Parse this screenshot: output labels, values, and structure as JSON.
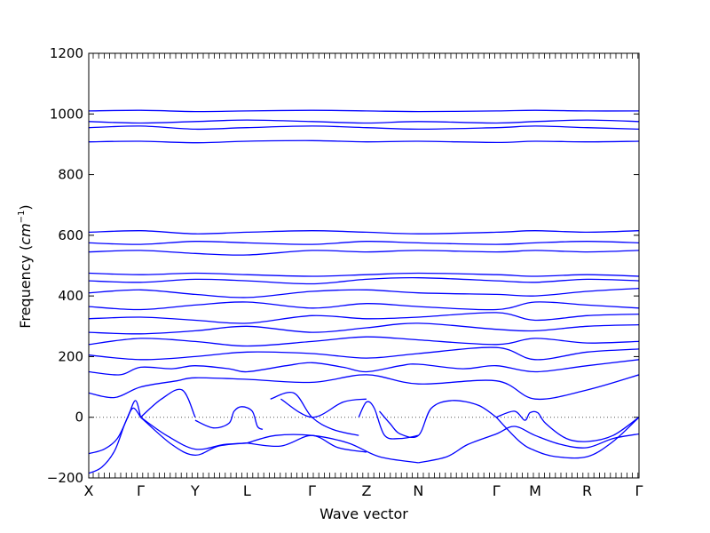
{
  "chart_data": {
    "type": "line",
    "title": "",
    "xlabel": "Wave vector",
    "ylabel": "Frequency ",
    "ylabel_unit_base": "cm",
    "ylabel_unit_exp": "−1",
    "ylim": [
      -200,
      1200
    ],
    "yticks": [
      -200,
      0,
      200,
      400,
      600,
      800,
      1000,
      1200
    ],
    "xlim": [
      0,
      10.6
    ],
    "path_points": [
      {
        "label": "X",
        "x": 0
      },
      {
        "label": "Γ",
        "x": 1.0
      },
      {
        "label": "Y",
        "x": 2.05
      },
      {
        "label": "L",
        "x": 3.05
      },
      {
        "label": "Γ",
        "x": 4.3
      },
      {
        "label": "Z",
        "x": 5.35
      },
      {
        "label": "N",
        "x": 6.35
      },
      {
        "label": "Γ",
        "x": 7.85
      },
      {
        "label": "M",
        "x": 8.6
      },
      {
        "label": "R",
        "x": 9.6
      },
      {
        "label": "Γ",
        "x": 10.6
      }
    ],
    "zero_line": {
      "y": 0,
      "style": "dotted"
    },
    "grid": false,
    "line_color": "#0000ff",
    "series": [
      {
        "x": [
          0,
          0.25,
          0.5,
          0.7,
          0.85,
          1.0
        ],
        "y": [
          -185,
          -165,
          -110,
          -20,
          30,
          0
        ]
      },
      {
        "x": [
          0,
          0.3,
          0.55,
          0.75,
          0.9,
          1.0
        ],
        "y": [
          -120,
          -105,
          -70,
          0,
          55,
          0
        ]
      },
      {
        "x": [
          1.0,
          1.6,
          2.05,
          2.5,
          3.05
        ],
        "y": [
          0,
          -90,
          -125,
          -95,
          -85
        ]
      },
      {
        "x": [
          1.0,
          1.5,
          2.05,
          2.6,
          3.05
        ],
        "y": [
          0,
          -60,
          -105,
          -90,
          -85
        ]
      },
      {
        "x": [
          1.0,
          1.4,
          1.8,
          2.05
        ],
        "y": [
          0,
          60,
          90,
          0
        ]
      },
      {
        "x": [
          2.05,
          2.4,
          2.7,
          2.8,
          2.95,
          3.15,
          3.25,
          3.35
        ],
        "y": [
          -10,
          -35,
          -20,
          20,
          35,
          20,
          -30,
          -40
        ]
      },
      {
        "x": [
          3.05,
          3.7,
          4.3,
          4.8,
          5.35
        ],
        "y": [
          -85,
          -95,
          -60,
          -100,
          -115
        ]
      },
      {
        "x": [
          3.05,
          3.6,
          4.3,
          5.0,
          5.6,
          6.35
        ],
        "y": [
          -85,
          -60,
          -60,
          -85,
          -130,
          -150
        ]
      },
      {
        "x": [
          3.5,
          3.95,
          4.3,
          4.7,
          5.2
        ],
        "y": [
          60,
          80,
          0,
          -40,
          -60
        ]
      },
      {
        "x": [
          3.7,
          4.3,
          4.9,
          5.35
        ],
        "y": [
          60,
          0,
          50,
          60
        ]
      },
      {
        "x": [
          5.2,
          5.35,
          5.5,
          5.7,
          6.0,
          6.35
        ],
        "y": [
          0,
          50,
          30,
          -60,
          -70,
          -60
        ]
      },
      {
        "x": [
          5.6,
          5.8,
          6.0,
          6.35,
          6.6,
          7.0,
          7.5,
          7.85
        ],
        "y": [
          20,
          -20,
          -55,
          -60,
          30,
          55,
          40,
          0
        ]
      },
      {
        "x": [
          6.35,
          6.9,
          7.3,
          7.85,
          8.2,
          8.6,
          9.1,
          9.6,
          10.1,
          10.6
        ],
        "y": [
          -150,
          -130,
          -90,
          -55,
          -30,
          -60,
          -90,
          -100,
          -70,
          -55
        ]
      },
      {
        "x": [
          7.85,
          8.3,
          8.6,
          9.0,
          9.6,
          10.1,
          10.6
        ],
        "y": [
          0,
          -80,
          -110,
          -130,
          -130,
          -80,
          0
        ]
      },
      {
        "x": [
          7.85,
          8.2,
          8.4,
          8.5,
          8.65,
          8.8,
          9.2,
          9.6,
          10.1,
          10.6
        ],
        "y": [
          0,
          20,
          -10,
          15,
          15,
          -20,
          -70,
          -80,
          -60,
          0
        ]
      },
      {
        "x": [
          0,
          0.5,
          1.0,
          1.7,
          2.05,
          3.05,
          4.3,
          5.35,
          6.35,
          7.85,
          8.6,
          9.6,
          10.6
        ],
        "y": [
          80,
          65,
          100,
          120,
          130,
          125,
          115,
          140,
          110,
          120,
          60,
          90,
          140
        ]
      },
      {
        "x": [
          0,
          0.6,
          1.0,
          1.6,
          2.05,
          2.7,
          3.05,
          3.8,
          4.3,
          4.9,
          5.35,
          6.0,
          6.35,
          7.2,
          7.85,
          8.6,
          9.6,
          10.6
        ],
        "y": [
          150,
          140,
          165,
          160,
          170,
          160,
          150,
          170,
          180,
          165,
          150,
          170,
          175,
          160,
          170,
          150,
          170,
          190
        ]
      },
      {
        "x": [
          0,
          1.0,
          2.05,
          3.05,
          4.3,
          5.35,
          6.35,
          7.85,
          8.6,
          9.6,
          10.6
        ],
        "y": [
          205,
          190,
          200,
          215,
          210,
          195,
          210,
          230,
          190,
          215,
          225
        ]
      },
      {
        "x": [
          0,
          1.0,
          2.05,
          3.05,
          4.3,
          5.35,
          6.35,
          7.85,
          8.6,
          9.6,
          10.6
        ],
        "y": [
          240,
          260,
          250,
          235,
          250,
          265,
          255,
          240,
          260,
          245,
          250
        ]
      },
      {
        "x": [
          0,
          1.0,
          2.05,
          3.05,
          4.3,
          5.35,
          6.35,
          7.85,
          8.6,
          9.6,
          10.6
        ],
        "y": [
          280,
          275,
          285,
          300,
          280,
          295,
          310,
          290,
          285,
          300,
          305
        ]
      },
      {
        "x": [
          0,
          1.0,
          2.05,
          3.05,
          4.3,
          5.35,
          6.35,
          7.85,
          8.6,
          9.6,
          10.6
        ],
        "y": [
          325,
          330,
          320,
          310,
          335,
          325,
          330,
          345,
          320,
          335,
          340
        ]
      },
      {
        "x": [
          0,
          1.0,
          2.05,
          3.05,
          4.3,
          5.35,
          6.35,
          7.85,
          8.6,
          9.6,
          10.6
        ],
        "y": [
          365,
          355,
          370,
          380,
          360,
          375,
          365,
          355,
          380,
          370,
          360
        ]
      },
      {
        "x": [
          0,
          1.0,
          2.05,
          3.05,
          4.3,
          5.35,
          6.35,
          7.85,
          8.6,
          9.6,
          10.6
        ],
        "y": [
          410,
          420,
          405,
          395,
          415,
          420,
          410,
          405,
          400,
          415,
          425
        ]
      },
      {
        "x": [
          0,
          1.0,
          2.05,
          3.05,
          4.3,
          5.35,
          6.35,
          7.85,
          8.6,
          9.6,
          10.6
        ],
        "y": [
          450,
          445,
          455,
          450,
          440,
          455,
          460,
          450,
          445,
          455,
          450
        ]
      },
      {
        "x": [
          0,
          1.0,
          2.05,
          3.05,
          4.3,
          5.35,
          6.35,
          7.85,
          8.6,
          9.6,
          10.6
        ],
        "y": [
          475,
          470,
          475,
          470,
          465,
          470,
          475,
          470,
          465,
          470,
          465
        ]
      },
      {
        "x": [
          0,
          1.0,
          2.05,
          3.05,
          4.3,
          5.35,
          6.35,
          7.85,
          8.6,
          9.6,
          10.6
        ],
        "y": [
          545,
          550,
          540,
          535,
          550,
          545,
          550,
          545,
          550,
          545,
          550
        ]
      },
      {
        "x": [
          0,
          1.0,
          2.05,
          3.05,
          4.3,
          5.35,
          6.35,
          7.85,
          8.6,
          9.6,
          10.6
        ],
        "y": [
          575,
          570,
          580,
          575,
          570,
          580,
          575,
          570,
          575,
          580,
          575
        ]
      },
      {
        "x": [
          0,
          1.0,
          2.05,
          3.05,
          4.3,
          5.35,
          6.35,
          7.85,
          8.6,
          9.6,
          10.6
        ],
        "y": [
          610,
          615,
          605,
          610,
          615,
          610,
          605,
          610,
          615,
          610,
          615
        ]
      },
      {
        "x": [
          0,
          1.0,
          2.05,
          3.05,
          4.3,
          5.35,
          6.35,
          7.85,
          8.6,
          9.6,
          10.6
        ],
        "y": [
          908,
          910,
          905,
          910,
          912,
          908,
          910,
          906,
          910,
          908,
          910
        ]
      },
      {
        "x": [
          0,
          1.0,
          2.05,
          3.05,
          4.3,
          5.35,
          6.35,
          7.85,
          8.6,
          9.6,
          10.6
        ],
        "y": [
          955,
          960,
          950,
          955,
          960,
          955,
          950,
          955,
          960,
          955,
          950
        ]
      },
      {
        "x": [
          0,
          1.0,
          2.05,
          3.05,
          4.3,
          5.35,
          6.35,
          7.85,
          8.6,
          9.6,
          10.6
        ],
        "y": [
          975,
          970,
          975,
          980,
          975,
          970,
          975,
          970,
          975,
          980,
          975
        ]
      },
      {
        "x": [
          0,
          1.0,
          2.05,
          3.05,
          4.3,
          5.35,
          6.35,
          7.85,
          8.6,
          9.6,
          10.6
        ],
        "y": [
          1010,
          1012,
          1008,
          1010,
          1012,
          1010,
          1008,
          1010,
          1012,
          1010,
          1010
        ]
      }
    ]
  }
}
